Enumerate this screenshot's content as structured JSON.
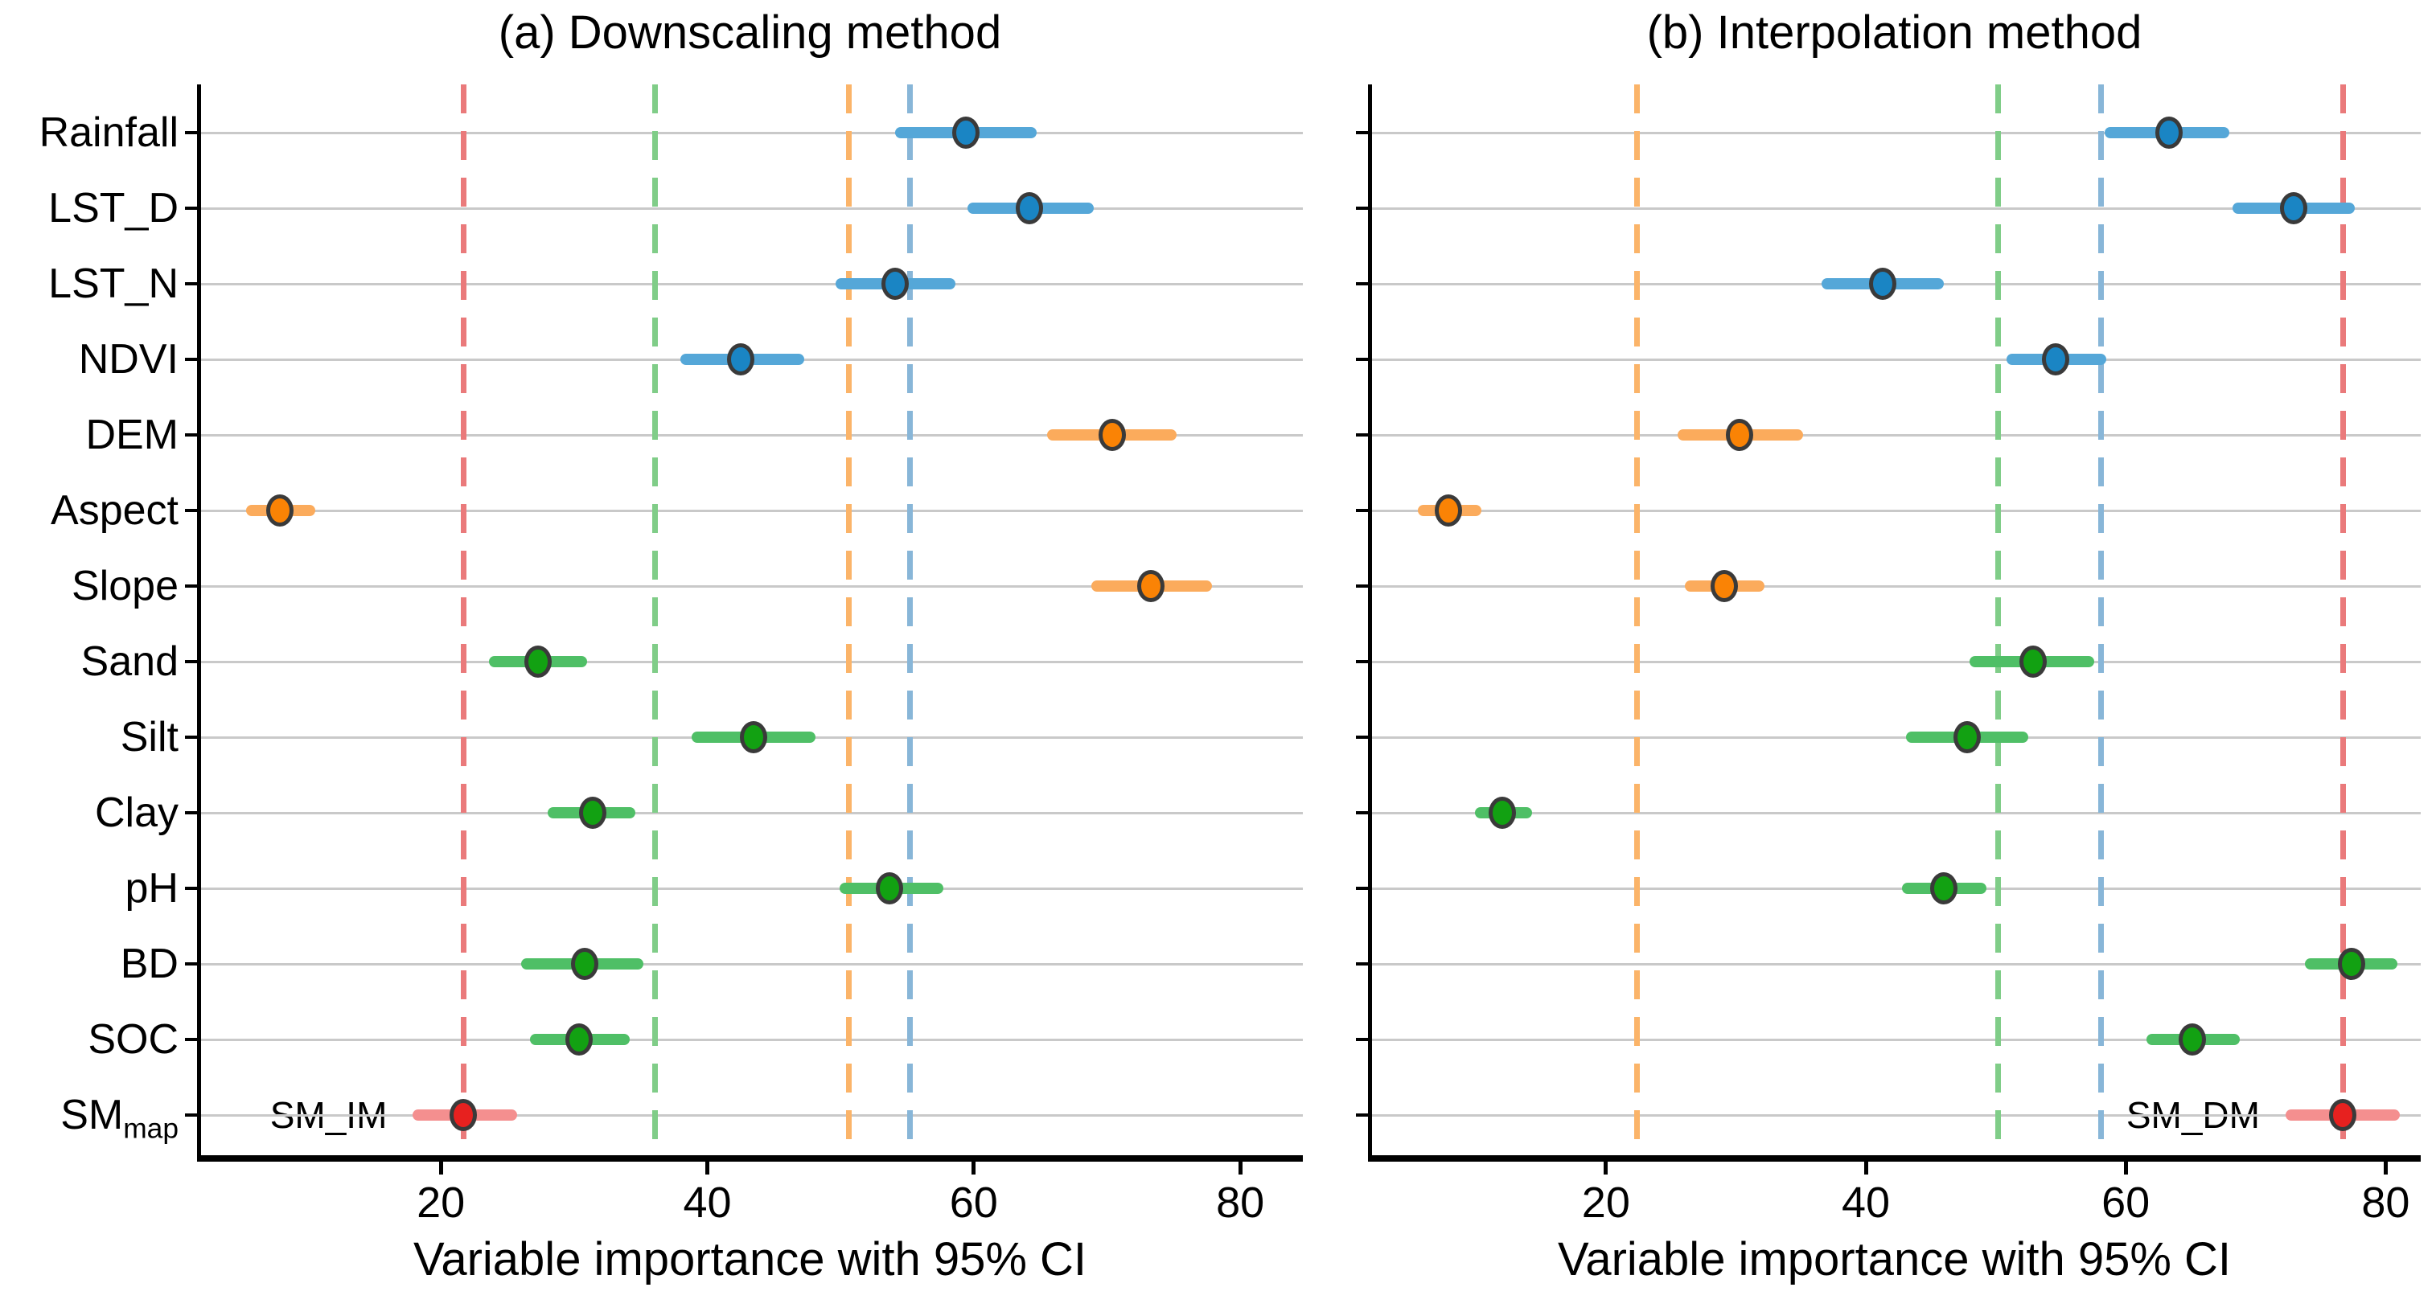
{
  "y_axis": {
    "categories": [
      {
        "label": "Rainfall",
        "sub": ""
      },
      {
        "label": "LST_D",
        "sub": ""
      },
      {
        "label": "LST_N",
        "sub": ""
      },
      {
        "label": "NDVI",
        "sub": ""
      },
      {
        "label": "DEM",
        "sub": ""
      },
      {
        "label": "Aspect",
        "sub": ""
      },
      {
        "label": "Slope",
        "sub": ""
      },
      {
        "label": "Sand",
        "sub": ""
      },
      {
        "label": "Silt",
        "sub": ""
      },
      {
        "label": "Clay",
        "sub": ""
      },
      {
        "label": "pH",
        "sub": ""
      },
      {
        "label": "BD",
        "sub": ""
      },
      {
        "label": "SOC",
        "sub": ""
      },
      {
        "label": "SM",
        "sub": "map"
      }
    ]
  },
  "palette": {
    "point": {
      "blue": "#1a85c4",
      "orange": "#fa8305",
      "green": "#12a112",
      "red": "#e7211f"
    },
    "bar": {
      "blue": "#55a7d8",
      "orange": "#fbab5c",
      "green": "#4fbf66",
      "red": "#f48f8f"
    },
    "dash": {
      "blue": "#88b6d8",
      "orange": "#fbb469",
      "green": "#80cd88",
      "red": "#ea7a7b"
    },
    "outline": "#3a3a3a",
    "gridline": "#c9c9c9",
    "axis": "#000000"
  },
  "chart_data": [
    {
      "type": "scatter",
      "title": "(a) Downscaling method",
      "xlabel": "Variable importance with 95% CI",
      "ylabel": "",
      "legend": "none",
      "grid": "horizontal",
      "xlim": [
        2,
        84.7
      ],
      "xticks": [
        20,
        40,
        60,
        80
      ],
      "points": [
        {
          "category": "Rainfall",
          "color": "blue",
          "value": 59.4,
          "ci_low": 54.1,
          "ci_high": 64.7
        },
        {
          "category": "LST_D",
          "color": "blue",
          "value": 64.2,
          "ci_low": 59.5,
          "ci_high": 69.0
        },
        {
          "category": "LST_N",
          "color": "blue",
          "value": 54.1,
          "ci_low": 49.6,
          "ci_high": 58.6
        },
        {
          "category": "NDVI",
          "color": "blue",
          "value": 42.5,
          "ci_low": 38.0,
          "ci_high": 47.3
        },
        {
          "category": "DEM",
          "color": "orange",
          "value": 70.4,
          "ci_low": 65.5,
          "ci_high": 75.2
        },
        {
          "category": "Aspect",
          "color": "orange",
          "value": 7.9,
          "ci_low": 5.4,
          "ci_high": 10.6
        },
        {
          "category": "Slope",
          "color": "orange",
          "value": 73.3,
          "ci_low": 68.8,
          "ci_high": 77.9
        },
        {
          "category": "Sand",
          "color": "green",
          "value": 27.3,
          "ci_low": 23.6,
          "ci_high": 31.0
        },
        {
          "category": "Silt",
          "color": "green",
          "value": 43.5,
          "ci_low": 38.8,
          "ci_high": 48.1
        },
        {
          "category": "Clay",
          "color": "green",
          "value": 31.4,
          "ci_low": 28.0,
          "ci_high": 34.6
        },
        {
          "category": "pH",
          "color": "green",
          "value": 53.7,
          "ci_low": 49.9,
          "ci_high": 57.7
        },
        {
          "category": "BD",
          "color": "green",
          "value": 30.8,
          "ci_low": 26.0,
          "ci_high": 35.2
        },
        {
          "category": "SOC",
          "color": "green",
          "value": 30.4,
          "ci_low": 26.7,
          "ci_high": 34.2
        },
        {
          "category": "SM_map",
          "color": "red",
          "value": 21.7,
          "ci_low": 17.9,
          "ci_high": 25.7
        }
      ],
      "ref_lines": [
        {
          "color": "red",
          "value": 21.7
        },
        {
          "color": "green",
          "value": 36.1
        },
        {
          "color": "orange",
          "value": 50.6
        },
        {
          "color": "blue",
          "value": 55.2
        }
      ],
      "annotations": [
        {
          "text": "SM_IM",
          "category": "SM_map",
          "position": "left-of-ci"
        }
      ]
    },
    {
      "type": "scatter",
      "title": "(b) Interpolation method",
      "xlabel": "Variable importance with 95% CI",
      "ylabel": "",
      "legend": "none",
      "grid": "horizontal",
      "xlim": [
        2,
        82.7
      ],
      "xticks": [
        20,
        40,
        60,
        80
      ],
      "points": [
        {
          "category": "Rainfall",
          "color": "blue",
          "value": 63.3,
          "ci_low": 58.4,
          "ci_high": 68.0
        },
        {
          "category": "LST_D",
          "color": "blue",
          "value": 72.9,
          "ci_low": 68.2,
          "ci_high": 77.6
        },
        {
          "category": "LST_N",
          "color": "blue",
          "value": 41.3,
          "ci_low": 36.6,
          "ci_high": 46.0
        },
        {
          "category": "NDVI",
          "color": "blue",
          "value": 54.6,
          "ci_low": 50.8,
          "ci_high": 58.5
        },
        {
          "category": "DEM",
          "color": "orange",
          "value": 30.3,
          "ci_low": 25.5,
          "ci_high": 35.2
        },
        {
          "category": "Aspect",
          "color": "orange",
          "value": 7.9,
          "ci_low": 5.5,
          "ci_high": 10.4
        },
        {
          "category": "Slope",
          "color": "orange",
          "value": 29.1,
          "ci_low": 26.1,
          "ci_high": 32.2
        },
        {
          "category": "Sand",
          "color": "green",
          "value": 52.9,
          "ci_low": 48.0,
          "ci_high": 57.6
        },
        {
          "category": "Silt",
          "color": "green",
          "value": 47.8,
          "ci_low": 43.1,
          "ci_high": 52.5
        },
        {
          "category": "Clay",
          "color": "green",
          "value": 12.0,
          "ci_low": 9.9,
          "ci_high": 14.3
        },
        {
          "category": "pH",
          "color": "green",
          "value": 46.0,
          "ci_low": 42.8,
          "ci_high": 49.3
        },
        {
          "category": "BD",
          "color": "green",
          "value": 77.4,
          "ci_low": 73.8,
          "ci_high": 80.9
        },
        {
          "category": "SOC",
          "color": "green",
          "value": 65.1,
          "ci_low": 61.6,
          "ci_high": 68.8
        },
        {
          "category": "SM_map",
          "color": "red",
          "value": 76.7,
          "ci_low": 72.3,
          "ci_high": 81.1
        }
      ],
      "ref_lines": [
        {
          "color": "orange",
          "value": 22.4
        },
        {
          "color": "green",
          "value": 50.2
        },
        {
          "color": "blue",
          "value": 58.1
        },
        {
          "color": "red",
          "value": 76.7
        }
      ],
      "annotations": [
        {
          "text": "SM_DM",
          "category": "SM_map",
          "position": "left-of-ci"
        }
      ]
    }
  ]
}
